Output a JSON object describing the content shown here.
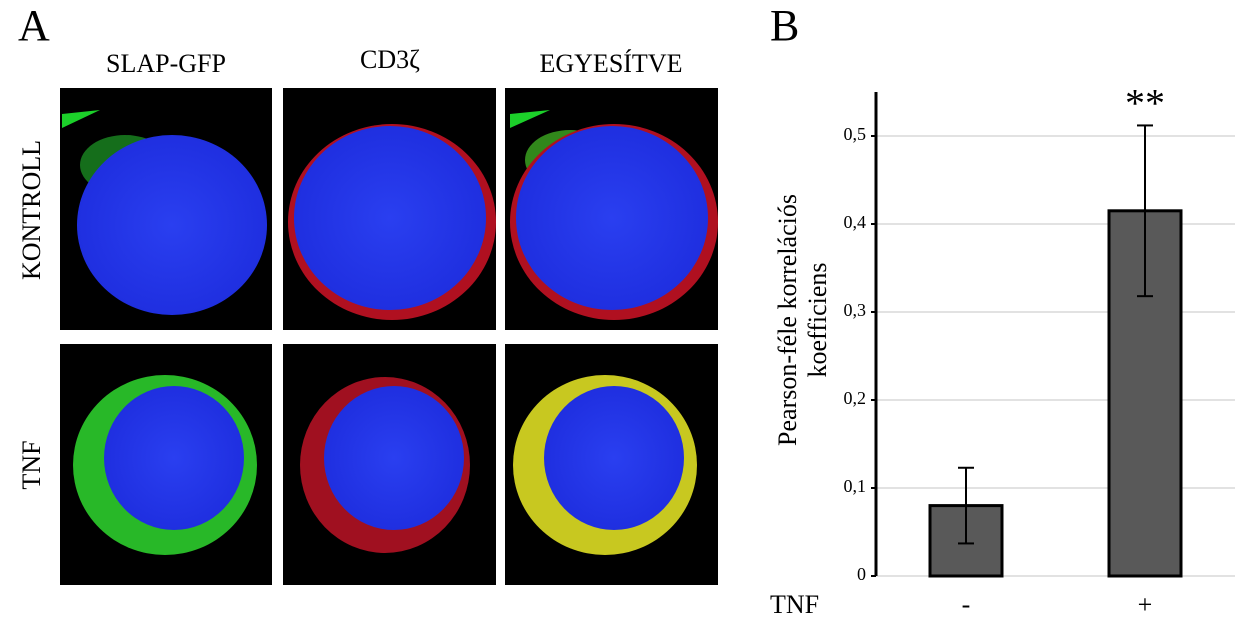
{
  "panel_a": {
    "label": "A",
    "columns": [
      "SLAP-GFP",
      "CD3ζ",
      "EGYESÍTVE"
    ],
    "rows": [
      "KONTROLL",
      "TNF"
    ]
  },
  "chart_data": {
    "type": "bar",
    "label": "B",
    "x_label": "TNF",
    "y_label": [
      "Pearson-féle korrelációs",
      "koefficiens"
    ],
    "categories": [
      "-",
      "+"
    ],
    "values": [
      0.08,
      0.415
    ],
    "errors": [
      0.043,
      0.097
    ],
    "annotations": [
      null,
      "**"
    ],
    "color": "#595959",
    "ylim": [
      0,
      0.55
    ],
    "yticks": [
      0,
      {
        "value": 0.1,
        "label": "0,1"
      },
      {
        "value": 0.2,
        "label": "0,2"
      },
      {
        "value": 0.3,
        "label": "0,3"
      },
      {
        "value": 0.4,
        "label": "0,4"
      },
      {
        "value": 0.5,
        "label": "0,5"
      }
    ],
    "grid": true
  }
}
